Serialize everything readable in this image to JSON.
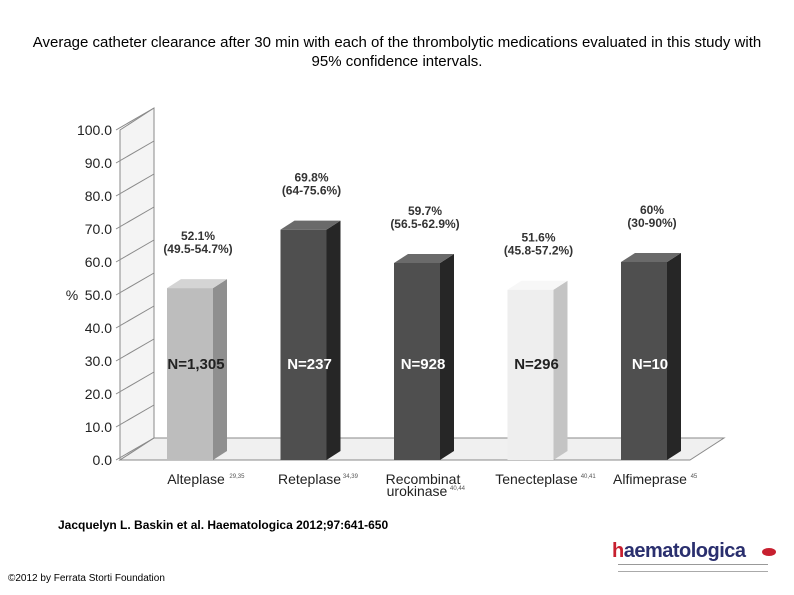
{
  "title": "Average catheter clearance after 30 min with each of the thrombolytic medications evaluated in this study with 95% confidence intervals.",
  "citation": "Jacquelyn L. Baskin et al. Haematologica 2012;97:641-650",
  "copyright": "©2012 by Ferrata Storti Foundation",
  "logo": {
    "text_prefix": "h",
    "text_rest": "aematologica"
  },
  "chart_data": {
    "type": "bar",
    "ylabel": "%",
    "ylim": [
      0,
      100
    ],
    "yticks": [
      "0.0",
      "10.0",
      "20.0",
      "30.0",
      "40.0",
      "50.0",
      "60.0",
      "70.0",
      "80.0",
      "90.0",
      "100.0"
    ],
    "categories": [
      {
        "name": "Alteplase",
        "sup": "29,35"
      },
      {
        "name": "Reteplase",
        "sup": "34,39"
      },
      {
        "name": "Recombinat urokinase",
        "sup": "40,44"
      },
      {
        "name": "Tenecteplase",
        "sup": "40,41"
      },
      {
        "name": "Alfimeprase",
        "sup": "45"
      }
    ],
    "values": [
      52.1,
      69.8,
      59.7,
      51.6,
      60
    ],
    "value_labels": [
      "52.1%",
      "69.8%",
      "59.7%",
      "51.6%",
      "60%"
    ],
    "ci_labels": [
      "(49.5-54.7%)",
      "(64-75.6%)",
      "(56.5-62.9%)",
      "(45.8-57.2%)",
      "(30-90%)"
    ],
    "n_labels": [
      "N=1,305",
      "N=237",
      "N=928",
      "N=296",
      "N=10"
    ],
    "colors": {
      "front": [
        "#bdbdbd",
        "#4f4f4f",
        "#4f4f4f",
        "#eeeeee",
        "#4f4f4f"
      ],
      "side": [
        "#8f8f8f",
        "#262626",
        "#262626",
        "#c4c4c4",
        "#262626"
      ],
      "top": [
        "#d4d4d4",
        "#6a6a6a",
        "#6a6a6a",
        "#f7f7f7",
        "#6a6a6a"
      ],
      "n_text": [
        "#222222",
        "#ffffff",
        "#ffffff",
        "#222222",
        "#ffffff"
      ]
    },
    "grid": false
  }
}
